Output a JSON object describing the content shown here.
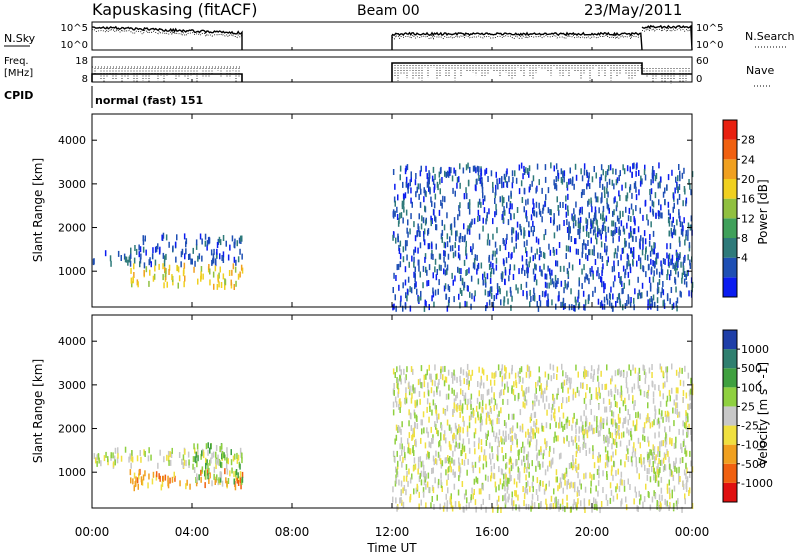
{
  "header": {
    "station": "Kapuskasing (fitACF)",
    "beam": "Beam 00",
    "date": "23/May/2011"
  },
  "panels": {
    "nsky_label": "N.Sky",
    "nsky_ticks": [
      "10^5",
      "10^0"
    ],
    "nsearch_label": "N.Search",
    "freq_label": "Freq.",
    "freq_unit": "[MHz]",
    "freq_ticks": [
      "18",
      "8"
    ],
    "nave_label": "Nave",
    "nave_ticks": [
      "60",
      "0"
    ],
    "cpid_label": "CPID",
    "cpid_value": "normal (fast) 151"
  },
  "colorbars": {
    "power": {
      "label": "Power [dB]",
      "ticks": [
        "28",
        "24",
        "20",
        "16",
        "12",
        "8",
        "4"
      ],
      "colors": [
        "#0a1cf0",
        "#1e4fb4",
        "#2e7a7a",
        "#3fa05a",
        "#90c040",
        "#f0d020",
        "#f0a020",
        "#f06010",
        "#e82010"
      ]
    },
    "velocity": {
      "label": "Velocity [m s^-1]",
      "ticks": [
        "1000",
        "500",
        "100",
        "25",
        "-25",
        "-100",
        "-500",
        "-1000"
      ],
      "colors": [
        "#1f3fa8",
        "#2f7f6f",
        "#3fa03f",
        "#8fd040",
        "#c8c8c8",
        "#f0e040",
        "#f0a020",
        "#f06010",
        "#e01010"
      ]
    }
  },
  "chart_data": [
    {
      "type": "heatmap",
      "name": "power",
      "ylabel": "Slant Range [km]",
      "xlabel": "Time UT",
      "x_ticks": [
        "00:00",
        "04:00",
        "08:00",
        "12:00",
        "16:00",
        "20:00",
        "00:00"
      ],
      "y_ticks": [
        "1000",
        "2000",
        "3000",
        "4000"
      ],
      "xlim_hours": [
        0,
        24
      ],
      "ylim_km": [
        180,
        4600
      ],
      "data_gaps_hours": [
        [
          6,
          12
        ]
      ],
      "scatter_bands": [
        {
          "t": [
            0.0,
            6.0
          ],
          "range_km": [
            1200,
            1500
          ],
          "level": 1
        },
        {
          "t": [
            1.5,
            6.0
          ],
          "range_km": [
            1500,
            1900
          ],
          "level": 1
        },
        {
          "t": [
            1.5,
            6.0
          ],
          "range_km": [
            700,
            1200
          ],
          "level": 5
        },
        {
          "t": [
            12.0,
            24.0
          ],
          "range_km": [
            200,
            3500
          ],
          "level": 1
        },
        {
          "t": [
            19.0,
            21.5
          ],
          "range_km": [
            1900,
            2300
          ],
          "level": 1
        },
        {
          "t": [
            22.0,
            24.0
          ],
          "range_km": [
            1000,
            1500
          ],
          "level": 1
        }
      ]
    },
    {
      "type": "heatmap",
      "name": "velocity",
      "ylabel": "Slant Range [km]",
      "xlabel": "Time UT",
      "x_ticks": [
        "00:00",
        "04:00",
        "08:00",
        "12:00",
        "16:00",
        "20:00",
        "00:00"
      ],
      "y_ticks": [
        "1000",
        "2000",
        "3000",
        "4000"
      ],
      "xlim_hours": [
        0,
        24
      ],
      "ylim_km": [
        180,
        4600
      ],
      "data_gaps_hours": [
        [
          6,
          12
        ]
      ],
      "scatter_bands": [
        {
          "t": [
            0.0,
            6.0
          ],
          "range_km": [
            1200,
            1600
          ],
          "level": 4
        },
        {
          "t": [
            1.5,
            6.0
          ],
          "range_km": [
            700,
            1100
          ],
          "level": 6
        },
        {
          "t": [
            4.0,
            6.0
          ],
          "range_km": [
            800,
            1700
          ],
          "level": 3
        },
        {
          "t": [
            12.0,
            24.0
          ],
          "range_km": [
            200,
            3500
          ],
          "level": 4
        },
        {
          "t": [
            19.0,
            21.5
          ],
          "range_km": [
            1900,
            2300
          ],
          "level": 4
        },
        {
          "t": [
            22.0,
            24.0
          ],
          "range_km": [
            1000,
            1500
          ],
          "level": 4
        }
      ]
    }
  ]
}
